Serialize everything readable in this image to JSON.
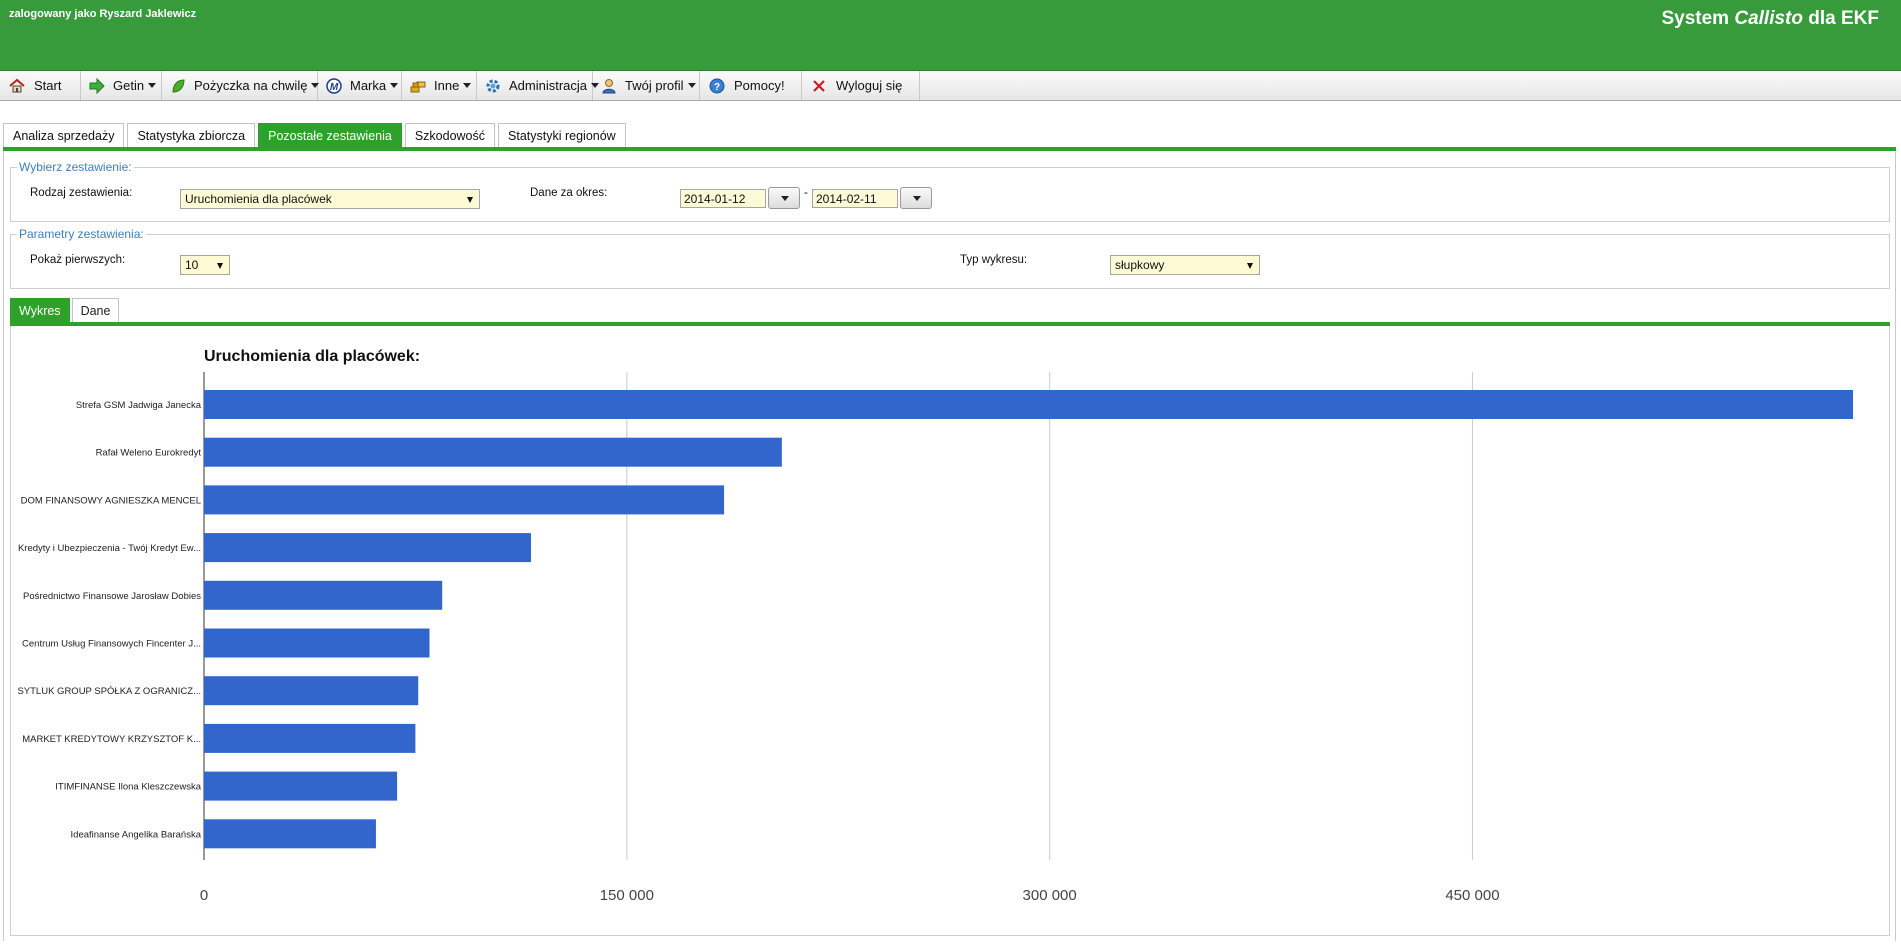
{
  "header": {
    "user_text": "zalogowany jako Ryszard Jaklewicz",
    "system_prefix": "System ",
    "system_italic": "Callisto",
    "system_suffix": " dla EKF"
  },
  "menu": {
    "start": "Start",
    "getin": "Getin",
    "pozyczka": "Pożyczka na chwilę",
    "marka": "Marka",
    "inne": "Inne",
    "administracja": "Administracja",
    "profil": "Twój profil",
    "pomocy": "Pomocy!",
    "wyloguj": "Wyloguj się"
  },
  "tabs": {
    "analiza": "Analiza sprzedaży",
    "statystyka": "Statystyka zbiorcza",
    "pozostale": "Pozostałe zestawienia",
    "szkodowosc": "Szkodowość",
    "regiony": "Statystyki regionów"
  },
  "wybierz": {
    "legend": "Wybierz zestawienie:",
    "rodzaj_label": "Rodzaj zestawienia:",
    "rodzaj_value": "Uruchomienia dla placówek",
    "okres_label": "Dane za okres:",
    "date_from": "2014-01-12",
    "separator": "-",
    "date_to": "2014-02-11"
  },
  "parametry": {
    "legend": "Parametry zestawienia:",
    "pokaz_label": "Pokaż pierwszych:",
    "pokaz_value": "10",
    "typ_label": "Typ wykresu:",
    "typ_value": "słupkowy"
  },
  "subtabs": {
    "wykres": "Wykres",
    "dane": "Dane"
  },
  "chart_data": {
    "type": "bar",
    "orientation": "horizontal",
    "title": "Uruchomienia dla placówek:",
    "categories": [
      "Strefa GSM Jadwiga Janecka",
      "Rafał Weleno Eurokredyt",
      "DOM FINANSOWY AGNIESZKA MENCEL",
      "Kredyty i Ubezpieczenia - Twój Kredyt Ew...",
      "Pośrednictwo Finansowe Jarosław Dobies",
      "Centrum Usług Finansowych Fincenter J...",
      "SYTLUK GROUP SPÓŁKA Z OGRANICZ...",
      "MARKET KREDYTOWY KRZYSZTOF K...",
      "ITIMFINANSE Ilona Kleszczewska",
      "Ideafinanse Angelika Barańska"
    ],
    "values": [
      585000,
      205000,
      184500,
      116000,
      84500,
      80000,
      76000,
      75000,
      68500,
      61000
    ],
    "xlim": [
      0,
      585000
    ],
    "xticks": [
      0,
      150000,
      300000,
      450000
    ],
    "xtick_labels": [
      "0",
      "150 000",
      "300 000",
      "450 000"
    ],
    "grid": true,
    "bar_color": "#3366cc"
  }
}
